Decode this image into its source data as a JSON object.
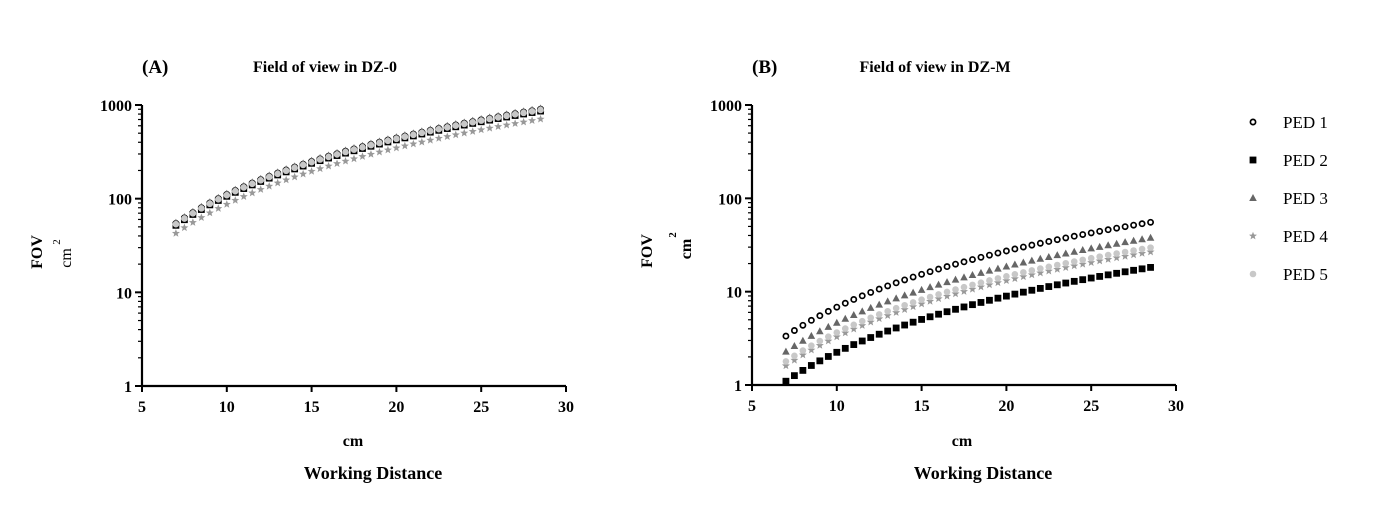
{
  "legend": {
    "placement": "right",
    "entries": [
      {
        "label": "PED 1",
        "marker": "open-circle",
        "color": "#000000"
      },
      {
        "label": "PED 2",
        "marker": "square",
        "color": "#000000"
      },
      {
        "label": "PED 3",
        "marker": "triangle",
        "color": "#666666"
      },
      {
        "label": "PED 4",
        "marker": "star",
        "color": "#999999"
      },
      {
        "label": "PED 5",
        "marker": "circle",
        "color": "#c8c8c8"
      }
    ]
  },
  "chart_data": [
    {
      "type": "scatter",
      "panel_label": "(A)",
      "title": "Field of view in DZ-0",
      "xlabel": "cm",
      "xlabel2": "Working Distance",
      "ylabel": "FOV",
      "ylabel_unit": "cm",
      "ylabel_exp": "2",
      "xlim": [
        5,
        30
      ],
      "xticks": [
        "5",
        "10",
        "15",
        "20",
        "25",
        "30"
      ],
      "yscale": "log",
      "ylim": [
        1,
        1000
      ],
      "yticks": [
        "1",
        "10",
        "100",
        "1000"
      ],
      "grid": false,
      "x": {
        "start": 7,
        "stop": 28.5,
        "step": 0.5
      },
      "series": [
        {
          "name": "PED 1",
          "a": 1.11,
          "p": 2.0
        },
        {
          "name": "PED 2",
          "a": 1.06,
          "p": 2.0
        },
        {
          "name": "PED 3",
          "a": 1.13,
          "p": 2.0
        },
        {
          "name": "PED 4",
          "a": 0.87,
          "p": 2.0
        },
        {
          "name": "PED 5",
          "a": 1.09,
          "p": 2.0
        }
      ]
    },
    {
      "type": "scatter",
      "panel_label": "(B)",
      "title": "Field of view in DZ-M",
      "xlabel": "cm",
      "xlabel2": "Working Distance",
      "ylabel": "FOV",
      "ylabel_unit": "cm",
      "ylabel_exp": "2",
      "xlim": [
        5,
        30
      ],
      "xticks": [
        "5",
        "10",
        "15",
        "20",
        "25",
        "30"
      ],
      "yscale": "log",
      "ylim": [
        1,
        1000
      ],
      "yticks": [
        "1",
        "10",
        "100",
        "1000"
      ],
      "grid": false,
      "x": {
        "start": 7,
        "stop": 28.5,
        "step": 0.5
      },
      "series": [
        {
          "name": "PED 1",
          "a": 0.0682,
          "p": 2.0
        },
        {
          "name": "PED 2",
          "a": 0.0224,
          "p": 2.0
        },
        {
          "name": "PED 3",
          "a": 0.0465,
          "p": 2.0
        },
        {
          "name": "PED 4",
          "a": 0.0328,
          "p": 2.0
        },
        {
          "name": "PED 5",
          "a": 0.0365,
          "p": 2.0
        }
      ]
    }
  ]
}
